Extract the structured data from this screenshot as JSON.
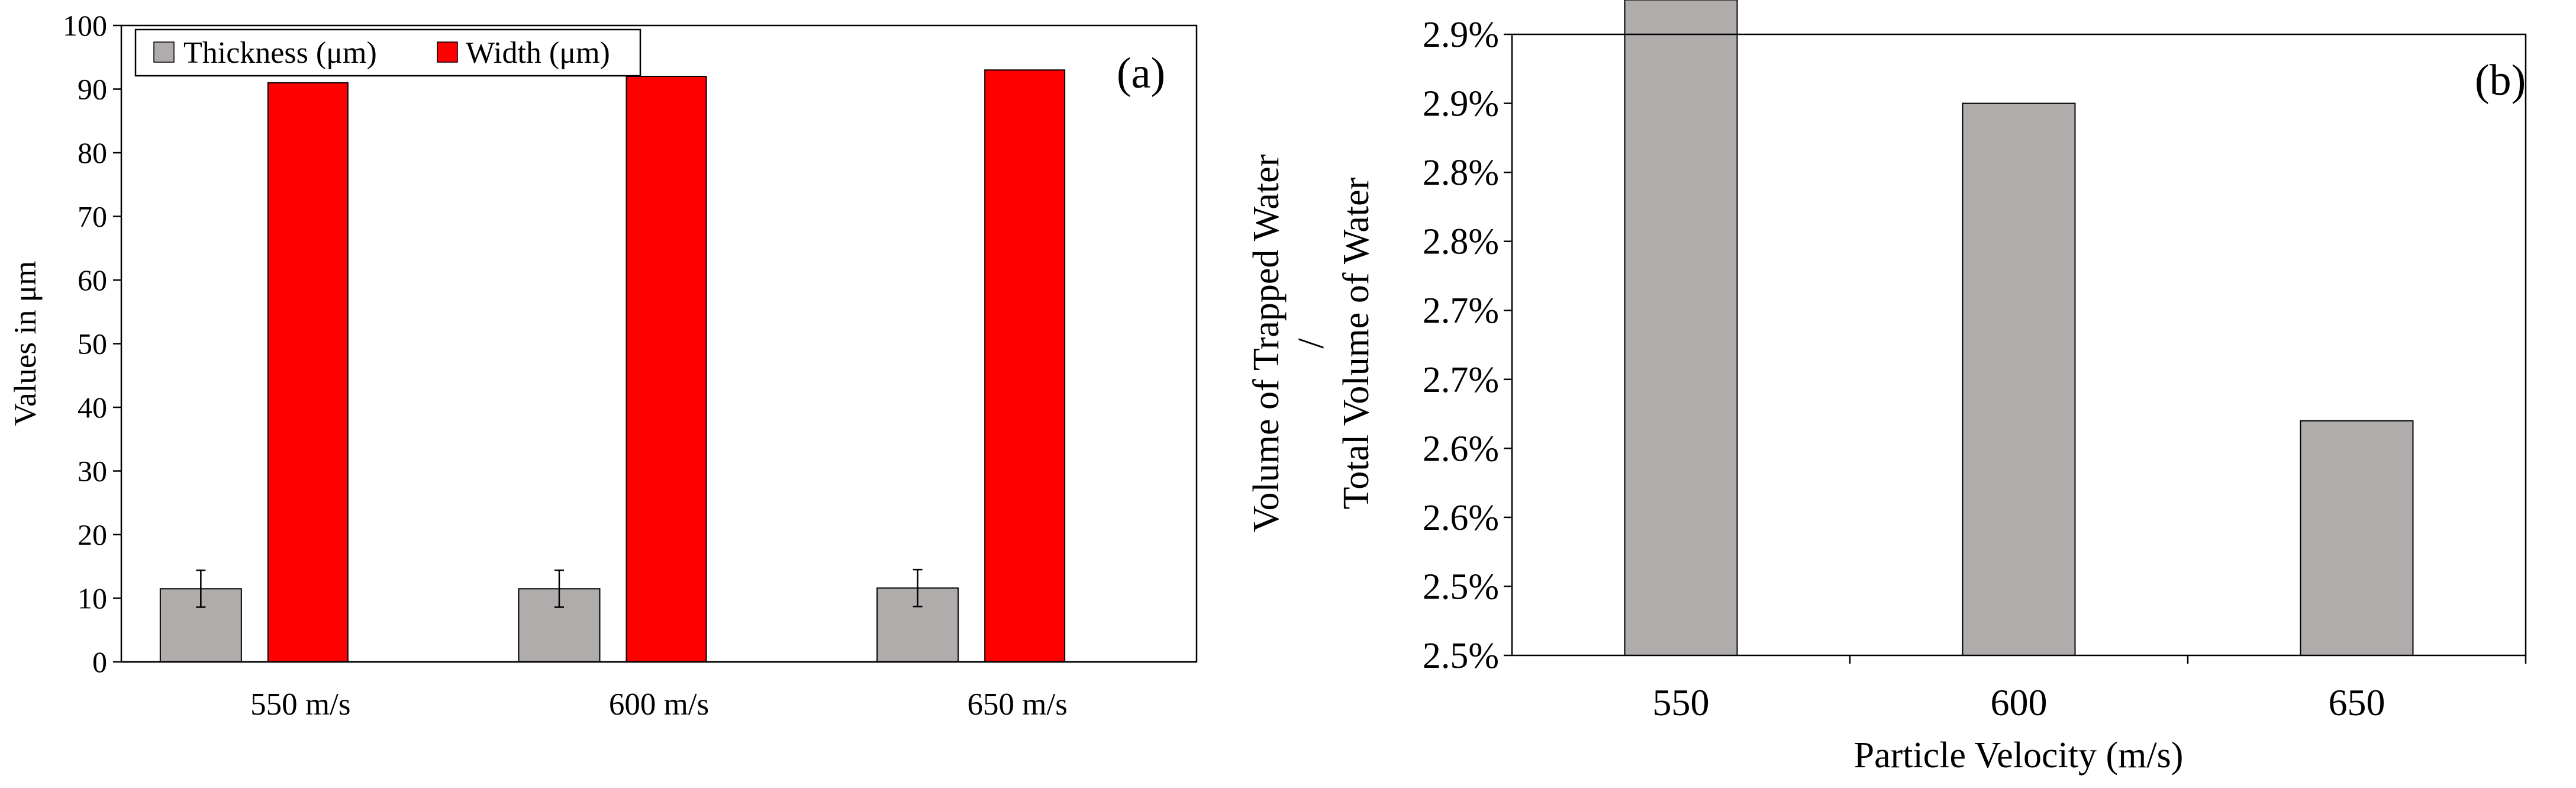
{
  "chart_data": [
    {
      "type": "bar",
      "panel_label": "(a)",
      "title": "",
      "categories": [
        "550 m/s",
        "600 m/s",
        "650 m/s"
      ],
      "series": [
        {
          "name": "Thickness  (μm)",
          "color": "#b0acab",
          "values": [
            11.5,
            11.5,
            11.6
          ],
          "error": [
            2.9,
            2.9,
            2.9
          ]
        },
        {
          "name": "Width (μm)",
          "color": "#ff0000",
          "values": [
            91,
            92,
            93
          ]
        }
      ],
      "xlabel": "",
      "ylabel": "Values in μm",
      "ylim": [
        0,
        100
      ],
      "yticks": [
        0,
        10,
        20,
        30,
        40,
        50,
        60,
        70,
        80,
        90,
        100
      ],
      "ytick_labels": [
        "0",
        "10",
        "20",
        "30",
        "40",
        "50",
        "60",
        "70",
        "80",
        "90",
        "100"
      ],
      "legend_position": "top-left",
      "grid": false
    },
    {
      "type": "bar",
      "panel_label": "(b)",
      "title": "",
      "categories": [
        "550",
        "600",
        "650"
      ],
      "series": [
        {
          "name": "Volume of Trapped Water / Total Volume of Water",
          "color": "#b0acab",
          "values": [
            2.925,
            2.85,
            2.62
          ]
        }
      ],
      "xlabel": "Particle Velocity (m/s)",
      "ylabel_lines": [
        "Volume of Trapped Water",
        "/",
        "Total Volume of Water"
      ],
      "ylim": [
        2.45,
        2.9
      ],
      "yticks": [
        2.45,
        2.5,
        2.55,
        2.6,
        2.65,
        2.7,
        2.75,
        2.8,
        2.85,
        2.9
      ],
      "ytick_labels": [
        "2.5%",
        "2.5%",
        "2.6%",
        "2.6%",
        "2.7%",
        "2.7%",
        "2.8%",
        "2.8%",
        "2.9%",
        "2.9%"
      ],
      "grid": false
    }
  ]
}
